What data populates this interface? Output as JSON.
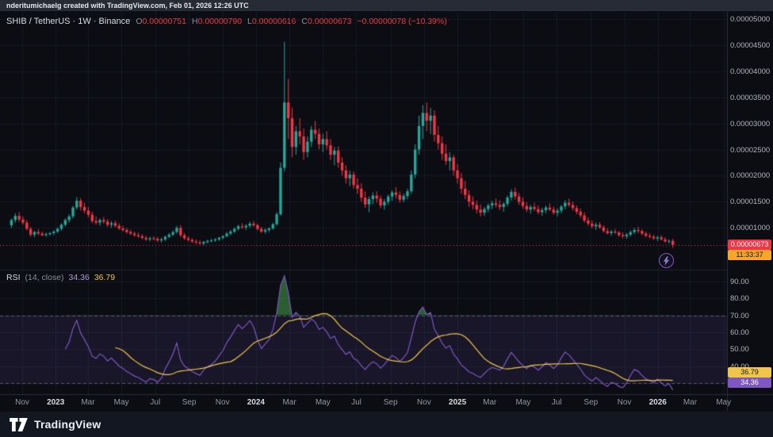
{
  "attribution": {
    "text": "nderitumichaelg created with TradingView.com, Feb 01, 2026 12:26 UTC"
  },
  "symbol_header": {
    "title": "SHIB / TetherUS · 1W · Binance",
    "o_label": "O",
    "o": "0.00000751",
    "h_label": "H",
    "h": "0.00000790",
    "l_label": "L",
    "l": "0.00000616",
    "c_label": "C",
    "c": "0.00000673",
    "change": "−0.00000078 (−10.39%)"
  },
  "price_axis": {
    "tick_labels": [
      "0.00005000",
      "0.00004500",
      "0.00004000",
      "0.00003500",
      "0.00003000",
      "0.00002500",
      "0.00002000",
      "0.00001500",
      "0.00001000"
    ],
    "last_price": "0.00000673",
    "countdown": "11:33:37"
  },
  "rsi_panel": {
    "name": "RSI",
    "params": "(14, close)",
    "value": "34.36",
    "ma_value": "36.79",
    "tick_labels": [
      "90.00",
      "80.00",
      "70.00",
      "60.00",
      "50.00",
      "40.00",
      "30.00"
    ],
    "value_badge": "34.36",
    "ma_badge": "36.79"
  },
  "time_axis": {
    "labels": [
      {
        "t": "Nov",
        "i": 3.3,
        "year": false
      },
      {
        "t": "2023",
        "i": 12.0,
        "year": true
      },
      {
        "t": "Mar",
        "i": 20.4,
        "year": false
      },
      {
        "t": "May",
        "i": 29.1,
        "year": false
      },
      {
        "t": "Jul",
        "i": 37.9,
        "year": false
      },
      {
        "t": "Sep",
        "i": 46.7,
        "year": false
      },
      {
        "t": "Nov",
        "i": 55.4,
        "year": false
      },
      {
        "t": "2024",
        "i": 64.1,
        "year": true
      },
      {
        "t": "Mar",
        "i": 72.8,
        "year": false
      },
      {
        "t": "May",
        "i": 81.5,
        "year": false
      },
      {
        "t": "Jul",
        "i": 90.2,
        "year": false
      },
      {
        "t": "Sep",
        "i": 99.1,
        "year": false
      },
      {
        "t": "Nov",
        "i": 107.8,
        "year": false
      },
      {
        "t": "2025",
        "i": 116.5,
        "year": true
      },
      {
        "t": "Mar",
        "i": 124.9,
        "year": false
      },
      {
        "t": "May",
        "i": 133.6,
        "year": false
      },
      {
        "t": "Jul",
        "i": 142.3,
        "year": false
      },
      {
        "t": "Sep",
        "i": 151.2,
        "year": false
      },
      {
        "t": "Nov",
        "i": 159.9,
        "year": false
      },
      {
        "t": "2026",
        "i": 168.6,
        "year": true
      },
      {
        "t": "Mar",
        "i": 177.0,
        "year": false
      },
      {
        "t": "May",
        "i": 185.7,
        "year": false
      }
    ]
  },
  "footer": {
    "brand": "TradingView"
  },
  "colors": {
    "background": "#0b0d13",
    "grid": "#151a24",
    "up": "#26a69a",
    "down": "#f23645",
    "rsi_line": "#7e57c2",
    "rsi_ma": "#f0c64a",
    "band_fill": "rgba(126,87,194,0.12)",
    "overbought_fill": "rgba(76,175,80,0.5)",
    "axis_text": "#b2b5be",
    "badge_price_bg": "#f23645",
    "badge_countdown_bg": "#f7a62a"
  },
  "chart_data": {
    "type": "candlestick",
    "title": "SHIB / TetherUS weekly candles with RSI(14) sub-panel",
    "symbol": "SHIB/USDT",
    "exchange": "Binance",
    "timeframe": "1W",
    "x_unit": "week (Oct 2022 → Jan 2026)",
    "price_unit_multiplier": 1e-08,
    "y_axis": {
      "min": 200,
      "max": 5150,
      "tick_step": 500,
      "note": "values are price × 1e8 USDT"
    },
    "last_bar": {
      "open": 751,
      "high": 790,
      "low": 616,
      "close": 673,
      "change_pct": -10.39
    },
    "rsi": {
      "period": 14,
      "source": "close",
      "overbought": 70,
      "oversold": 30,
      "last_value": 34.36,
      "last_ma": 36.79
    },
    "candles": [
      [
        1050,
        1180,
        1000,
        1150
      ],
      [
        1150,
        1280,
        1100,
        1230
      ],
      [
        1230,
        1300,
        1120,
        1160
      ],
      [
        1160,
        1220,
        1060,
        1100
      ],
      [
        1100,
        1150,
        950,
        980
      ],
      [
        980,
        1020,
        830,
        870
      ],
      [
        870,
        940,
        820,
        920
      ],
      [
        920,
        970,
        860,
        890
      ],
      [
        890,
        930,
        840,
        860
      ],
      [
        860,
        910,
        830,
        880
      ],
      [
        880,
        920,
        850,
        900
      ],
      [
        900,
        950,
        860,
        930
      ],
      [
        930,
        1010,
        900,
        980
      ],
      [
        980,
        1090,
        950,
        1060
      ],
      [
        1060,
        1180,
        1030,
        1150
      ],
      [
        1150,
        1260,
        1100,
        1220
      ],
      [
        1220,
        1420,
        1180,
        1390
      ],
      [
        1390,
        1590,
        1350,
        1520
      ],
      [
        1520,
        1570,
        1330,
        1400
      ],
      [
        1400,
        1480,
        1280,
        1330
      ],
      [
        1330,
        1400,
        1200,
        1250
      ],
      [
        1250,
        1310,
        1090,
        1130
      ],
      [
        1130,
        1220,
        1060,
        1100
      ],
      [
        1100,
        1180,
        1040,
        1150
      ],
      [
        1150,
        1210,
        1080,
        1120
      ],
      [
        1120,
        1170,
        1020,
        1060
      ],
      [
        1060,
        1130,
        1000,
        1090
      ],
      [
        1090,
        1140,
        1010,
        1040
      ],
      [
        1040,
        1090,
        960,
        990
      ],
      [
        990,
        1040,
        930,
        960
      ],
      [
        960,
        1000,
        890,
        920
      ],
      [
        920,
        960,
        860,
        890
      ],
      [
        890,
        930,
        830,
        860
      ],
      [
        860,
        910,
        810,
        840
      ],
      [
        840,
        880,
        780,
        810
      ],
      [
        810,
        850,
        750,
        780
      ],
      [
        780,
        830,
        740,
        800
      ],
      [
        800,
        840,
        760,
        790
      ],
      [
        790,
        830,
        730,
        760
      ],
      [
        760,
        810,
        720,
        780
      ],
      [
        780,
        850,
        750,
        830
      ],
      [
        830,
        900,
        800,
        870
      ],
      [
        870,
        950,
        840,
        920
      ],
      [
        920,
        1040,
        890,
        1000
      ],
      [
        1000,
        1050,
        820,
        860
      ],
      [
        860,
        900,
        770,
        800
      ],
      [
        800,
        840,
        740,
        770
      ],
      [
        770,
        800,
        710,
        740
      ],
      [
        740,
        780,
        690,
        720
      ],
      [
        720,
        760,
        680,
        700
      ],
      [
        700,
        750,
        670,
        730
      ],
      [
        730,
        770,
        700,
        750
      ],
      [
        750,
        790,
        720,
        760
      ],
      [
        760,
        800,
        730,
        780
      ],
      [
        780,
        830,
        750,
        810
      ],
      [
        810,
        860,
        780,
        840
      ],
      [
        840,
        920,
        820,
        890
      ],
      [
        890,
        960,
        860,
        930
      ],
      [
        930,
        1010,
        900,
        980
      ],
      [
        980,
        1060,
        950,
        1030
      ],
      [
        1030,
        1090,
        980,
        1010
      ],
      [
        1010,
        1070,
        960,
        1040
      ],
      [
        1040,
        1120,
        1000,
        1080
      ],
      [
        1080,
        1130,
        1020,
        1050
      ],
      [
        1050,
        1080,
        950,
        980
      ],
      [
        980,
        1020,
        900,
        930
      ],
      [
        930,
        990,
        890,
        960
      ],
      [
        960,
        1010,
        920,
        990
      ],
      [
        990,
        1100,
        960,
        1070
      ],
      [
        1070,
        1300,
        1040,
        1260
      ],
      [
        1260,
        2250,
        1230,
        2150
      ],
      [
        2150,
        4560,
        2080,
        3400
      ],
      [
        3400,
        3850,
        2700,
        3100
      ],
      [
        3100,
        3300,
        2350,
        2550
      ],
      [
        2550,
        2950,
        2400,
        2850
      ],
      [
        2850,
        3100,
        2600,
        2750
      ],
      [
        2750,
        2900,
        2300,
        2450
      ],
      [
        2450,
        2750,
        2350,
        2650
      ],
      [
        2650,
        2950,
        2550,
        2880
      ],
      [
        2880,
        3050,
        2700,
        2800
      ],
      [
        2800,
        2900,
        2500,
        2600
      ],
      [
        2600,
        2800,
        2450,
        2700
      ],
      [
        2700,
        2850,
        2500,
        2580
      ],
      [
        2580,
        2700,
        2300,
        2400
      ],
      [
        2400,
        2550,
        2200,
        2480
      ],
      [
        2480,
        2560,
        2150,
        2250
      ],
      [
        2250,
        2350,
        2000,
        2100
      ],
      [
        2100,
        2200,
        1850,
        1950
      ],
      [
        1950,
        2100,
        1800,
        2020
      ],
      [
        2020,
        2080,
        1750,
        1820
      ],
      [
        1820,
        1950,
        1650,
        1750
      ],
      [
        1750,
        1850,
        1500,
        1580
      ],
      [
        1580,
        1700,
        1380,
        1450
      ],
      [
        1450,
        1600,
        1300,
        1550
      ],
      [
        1550,
        1680,
        1450,
        1620
      ],
      [
        1620,
        1700,
        1480,
        1560
      ],
      [
        1560,
        1620,
        1380,
        1430
      ],
      [
        1430,
        1550,
        1350,
        1500
      ],
      [
        1500,
        1640,
        1440,
        1600
      ],
      [
        1600,
        1720,
        1520,
        1680
      ],
      [
        1680,
        1780,
        1560,
        1630
      ],
      [
        1630,
        1700,
        1480,
        1540
      ],
      [
        1540,
        1660,
        1490,
        1610
      ],
      [
        1610,
        1750,
        1550,
        1700
      ],
      [
        1700,
        2100,
        1650,
        2020
      ],
      [
        2020,
        2600,
        1950,
        2500
      ],
      [
        2500,
        3150,
        2400,
        2950
      ],
      [
        2950,
        3350,
        2700,
        3200
      ],
      [
        3200,
        3400,
        2850,
        3050
      ],
      [
        3050,
        3300,
        2800,
        3150
      ],
      [
        3150,
        3250,
        2650,
        2780
      ],
      [
        2780,
        2950,
        2500,
        2620
      ],
      [
        2620,
        2750,
        2300,
        2420
      ],
      [
        2420,
        2600,
        2200,
        2280
      ],
      [
        2280,
        2450,
        2100,
        2350
      ],
      [
        2350,
        2400,
        2000,
        2100
      ],
      [
        2100,
        2220,
        1850,
        1950
      ],
      [
        1950,
        2050,
        1650,
        1750
      ],
      [
        1750,
        1900,
        1550,
        1630
      ],
      [
        1630,
        1720,
        1400,
        1500
      ],
      [
        1500,
        1600,
        1350,
        1440
      ],
      [
        1440,
        1520,
        1280,
        1350
      ],
      [
        1350,
        1450,
        1220,
        1290
      ],
      [
        1290,
        1400,
        1230,
        1360
      ],
      [
        1360,
        1470,
        1300,
        1430
      ],
      [
        1430,
        1520,
        1360,
        1470
      ],
      [
        1470,
        1560,
        1390,
        1440
      ],
      [
        1440,
        1530,
        1340,
        1400
      ],
      [
        1400,
        1490,
        1310,
        1460
      ],
      [
        1460,
        1620,
        1410,
        1580
      ],
      [
        1580,
        1740,
        1520,
        1690
      ],
      [
        1690,
        1770,
        1540,
        1600
      ],
      [
        1600,
        1670,
        1440,
        1500
      ],
      [
        1500,
        1580,
        1370,
        1420
      ],
      [
        1420,
        1490,
        1300,
        1350
      ],
      [
        1350,
        1440,
        1270,
        1400
      ],
      [
        1400,
        1480,
        1320,
        1360
      ],
      [
        1360,
        1430,
        1260,
        1300
      ],
      [
        1300,
        1390,
        1230,
        1340
      ],
      [
        1340,
        1430,
        1280,
        1390
      ],
      [
        1390,
        1470,
        1320,
        1350
      ],
      [
        1350,
        1410,
        1250,
        1290
      ],
      [
        1290,
        1370,
        1220,
        1330
      ],
      [
        1330,
        1440,
        1280,
        1410
      ],
      [
        1410,
        1530,
        1360,
        1480
      ],
      [
        1480,
        1560,
        1400,
        1440
      ],
      [
        1440,
        1500,
        1330,
        1380
      ],
      [
        1380,
        1430,
        1260,
        1310
      ],
      [
        1310,
        1370,
        1190,
        1240
      ],
      [
        1240,
        1300,
        1100,
        1140
      ],
      [
        1140,
        1200,
        1040,
        1080
      ],
      [
        1080,
        1140,
        990,
        1030
      ],
      [
        1030,
        1100,
        960,
        1060
      ],
      [
        1060,
        1110,
        980,
        1010
      ],
      [
        1010,
        1050,
        910,
        940
      ],
      [
        940,
        990,
        870,
        900
      ],
      [
        900,
        960,
        850,
        930
      ],
      [
        930,
        980,
        880,
        910
      ],
      [
        910,
        940,
        830,
        860
      ],
      [
        860,
        910,
        800,
        840
      ],
      [
        840,
        900,
        790,
        870
      ],
      [
        870,
        950,
        840,
        920
      ],
      [
        920,
        1000,
        880,
        960
      ],
      [
        960,
        1020,
        900,
        940
      ],
      [
        940,
        970,
        860,
        890
      ],
      [
        890,
        930,
        820,
        850
      ],
      [
        850,
        900,
        800,
        830
      ],
      [
        830,
        870,
        770,
        800
      ],
      [
        800,
        850,
        750,
        820
      ],
      [
        820,
        860,
        760,
        780
      ],
      [
        780,
        820,
        720,
        740
      ],
      [
        740,
        780,
        700,
        751
      ],
      [
        751,
        790,
        616,
        673
      ]
    ]
  }
}
